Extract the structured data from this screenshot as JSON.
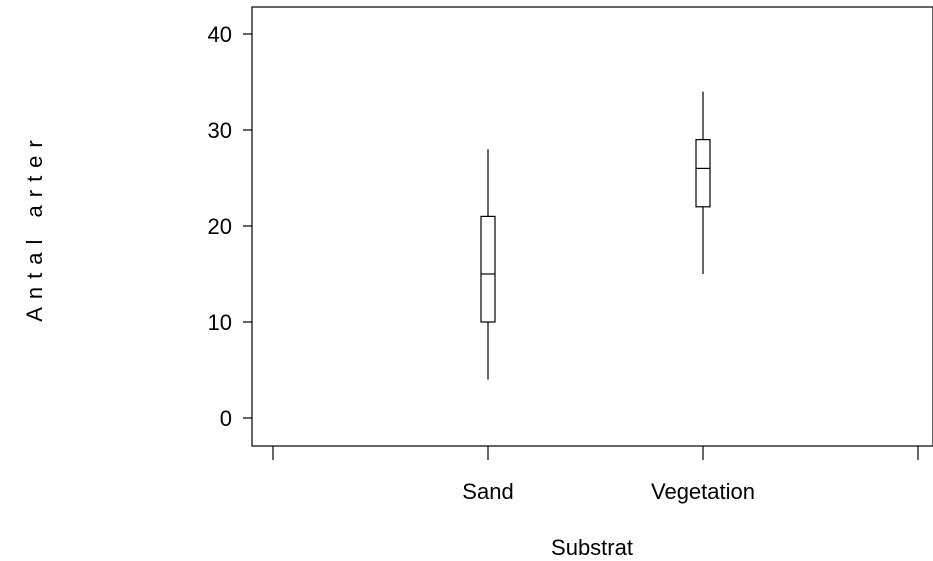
{
  "chart_data": {
    "type": "boxplot",
    "xlabel": "Substrat",
    "ylabel": "Antal arter",
    "ylim": [
      0,
      40
    ],
    "yticks": [
      0,
      10,
      20,
      30,
      40
    ],
    "categories": [
      "Sand",
      "Vegetation"
    ],
    "boxes": [
      {
        "category": "Sand",
        "min": 4,
        "q1": 10,
        "median": 15,
        "q3": 21,
        "max": 28
      },
      {
        "category": "Vegetation",
        "min": 15,
        "q1": 22,
        "median": 26,
        "q3": 29,
        "max": 34
      }
    ],
    "grid": false,
    "legend": "none"
  }
}
